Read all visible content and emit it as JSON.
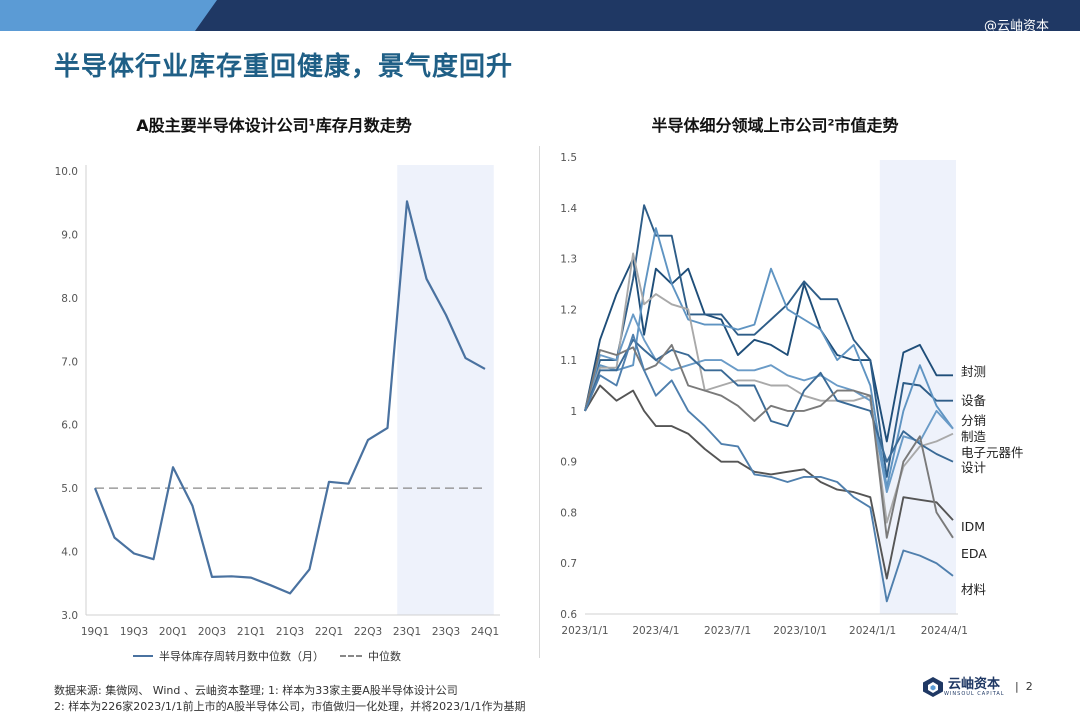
{
  "header": {
    "watermark": "@云岫资本"
  },
  "page": {
    "title": "半导体行业库存重回健康，景气度回升"
  },
  "footer": {
    "source_note": "数据来源: 集微网、 Wind 、云岫资本整理; 1: 样本为33家主要A股半导体设计公司",
    "note2": "2: 样本为226家2023/1/1前上市的A股半导体公司，市值做归一化处理，并将2023/1/1作为基期",
    "logo_text": "云岫资本",
    "logo_sub": "WINSOUL CAPITAL",
    "page_sep": "|",
    "page_number": "2"
  },
  "colors": {
    "brand": "#1f3864",
    "title": "#1f5f86",
    "highlight": "#eef2fb"
  },
  "chart_data": [
    {
      "type": "line",
      "title": "A股主要半导体设计公司¹库存月数走势",
      "xlabel": "",
      "ylabel": "",
      "ylim": [
        3.0,
        10.0
      ],
      "y_ticks": [
        "3.0",
        "4.0",
        "5.0",
        "6.0",
        "7.0",
        "8.0",
        "9.0",
        "10.0"
      ],
      "categories": [
        "19Q1",
        "19Q2",
        "19Q3",
        "19Q4",
        "20Q1",
        "20Q2",
        "20Q3",
        "20Q4",
        "21Q1",
        "21Q2",
        "21Q3",
        "21Q4",
        "22Q1",
        "22Q2",
        "22Q3",
        "22Q4",
        "23Q1",
        "23Q2",
        "23Q3",
        "23Q4",
        "24Q1"
      ],
      "x_tick_labels": [
        "19Q1",
        "19Q3",
        "20Q1",
        "20Q3",
        "21Q1",
        "21Q3",
        "22Q1",
        "22Q3",
        "23Q1",
        "23Q3",
        "24Q1"
      ],
      "series": [
        {
          "name": "半导体库存周转月数中位数（月）",
          "color": "#4a72a0",
          "values": [
            5.0,
            4.22,
            3.97,
            3.88,
            5.33,
            4.72,
            3.6,
            3.61,
            3.59,
            3.47,
            3.34,
            3.72,
            5.1,
            5.07,
            5.76,
            5.95,
            9.52,
            8.3,
            7.73,
            7.05,
            6.88
          ]
        }
      ],
      "reference_line": {
        "name": "中位数",
        "value": 5.0,
        "style": "dashed",
        "color": "#888888"
      },
      "highlight_range": [
        "23Q1",
        "24Q1"
      ],
      "legend": "bottom"
    },
    {
      "type": "line",
      "title": "半导体细分领域上市公司²市值走势",
      "xlabel": "",
      "ylabel": "",
      "ylim": [
        0.6,
        1.5
      ],
      "y_ticks": [
        "0.6",
        "0.7",
        "0.8",
        "0.9",
        "1",
        "1.1",
        "1.2",
        "1.3",
        "1.4",
        "1.5"
      ],
      "x": [
        "2023/1/1",
        "2023/1/20",
        "2023/2/10",
        "2023/3/3",
        "2023/3/17",
        "2023/4/1",
        "2023/4/21",
        "2023/5/12",
        "2023/6/2",
        "2023/6/23",
        "2023/7/14",
        "2023/8/4",
        "2023/8/25",
        "2023/9/15",
        "2023/10/6",
        "2023/10/27",
        "2023/11/17",
        "2023/12/8",
        "2023/12/29",
        "2024/1/19",
        "2024/2/9",
        "2024/3/1",
        "2024/3/22",
        "2024/4/12"
      ],
      "x_tick_labels": [
        "2023/1/1",
        "2023/4/1",
        "2023/7/1",
        "2023/10/1",
        "2024/1/1",
        "2024/4/1"
      ],
      "highlight_range": [
        "2024/1/19",
        "2024/4/12"
      ],
      "series": [
        {
          "name": "封测",
          "color": "#1f4e79",
          "values": [
            1.0,
            1.14,
            1.23,
            1.3,
            1.15,
            1.28,
            1.25,
            1.28,
            1.19,
            1.18,
            1.11,
            1.14,
            1.13,
            1.11,
            1.25,
            1.16,
            1.11,
            1.1,
            1.1,
            0.94,
            1.115,
            1.13,
            1.07,
            1.07
          ]
        },
        {
          "name": "设备",
          "color": "#2e5d88",
          "values": [
            1.0,
            1.1,
            1.1,
            1.26,
            1.405,
            1.345,
            1.345,
            1.19,
            1.19,
            1.19,
            1.15,
            1.15,
            1.18,
            1.21,
            1.255,
            1.22,
            1.22,
            1.14,
            1.1,
            0.87,
            1.055,
            1.05,
            1.02,
            1.02
          ]
        },
        {
          "name": "分销",
          "color": "#5f94c2",
          "values": [
            1.0,
            1.09,
            1.08,
            1.09,
            1.24,
            1.36,
            1.25,
            1.18,
            1.17,
            1.17,
            1.16,
            1.17,
            1.28,
            1.2,
            1.18,
            1.16,
            1.1,
            1.13,
            1.05,
            0.85,
            1.0,
            1.09,
            1.01,
            0.965
          ]
        },
        {
          "name": "制造",
          "color": "#a9a9a9",
          "values": [
            1.0,
            1.085,
            1.085,
            1.31,
            1.21,
            1.23,
            1.21,
            1.2,
            1.04,
            1.05,
            1.06,
            1.06,
            1.05,
            1.05,
            1.03,
            1.02,
            1.02,
            1.02,
            1.03,
            0.78,
            0.89,
            0.93,
            0.94,
            0.955
          ]
        },
        {
          "name": "电子元器件",
          "color": "#6a9bc7",
          "values": [
            1.0,
            1.11,
            1.1,
            1.19,
            1.14,
            1.1,
            1.08,
            1.09,
            1.1,
            1.1,
            1.08,
            1.08,
            1.09,
            1.07,
            1.06,
            1.07,
            1.05,
            1.04,
            1.02,
            0.84,
            0.95,
            0.94,
            1.0,
            0.965
          ]
        },
        {
          "name": "设计",
          "color": "#3a6a96",
          "values": [
            1.0,
            1.08,
            1.08,
            1.14,
            1.12,
            1.1,
            1.12,
            1.11,
            1.08,
            1.08,
            1.05,
            1.05,
            0.98,
            0.97,
            1.04,
            1.075,
            1.02,
            1.01,
            1.0,
            0.9,
            0.96,
            0.935,
            0.915,
            0.9
          ]
        },
        {
          "name": "IDM",
          "color": "#555555",
          "values": [
            1.0,
            1.05,
            1.02,
            1.04,
            1.0,
            0.97,
            0.97,
            0.955,
            0.925,
            0.9,
            0.9,
            0.88,
            0.875,
            0.88,
            0.885,
            0.86,
            0.845,
            0.84,
            0.83,
            0.67,
            0.83,
            0.825,
            0.82,
            0.785
          ]
        },
        {
          "name": "EDA",
          "color": "#7a7a7a",
          "values": [
            1.0,
            1.12,
            1.11,
            1.125,
            1.08,
            1.09,
            1.13,
            1.05,
            1.04,
            1.03,
            1.01,
            0.98,
            1.01,
            1.0,
            1.0,
            1.01,
            1.04,
            1.04,
            1.03,
            0.75,
            0.9,
            0.95,
            0.8,
            0.75
          ]
        },
        {
          "name": "材料",
          "color": "#4f7fad",
          "values": [
            1.0,
            1.07,
            1.05,
            1.15,
            1.08,
            1.03,
            1.06,
            1.0,
            0.97,
            0.935,
            0.93,
            0.875,
            0.87,
            0.86,
            0.87,
            0.87,
            0.86,
            0.83,
            0.81,
            0.625,
            0.725,
            0.715,
            0.7,
            0.675
          ]
        }
      ]
    }
  ]
}
